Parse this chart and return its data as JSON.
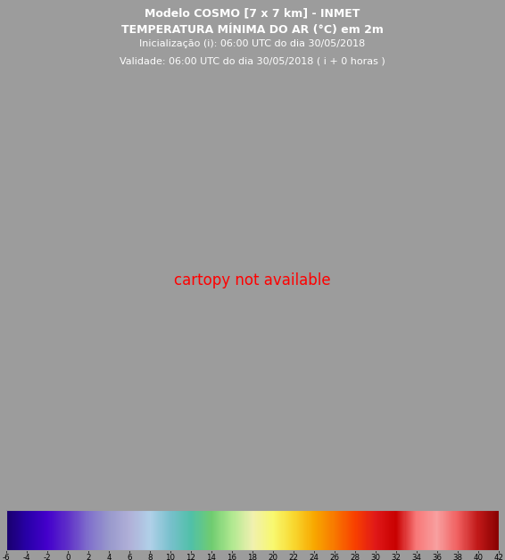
{
  "title_line1": "Modelo COSMO [7 x 7 km] - INMET",
  "title_line2": "TEMPERATURA MÍNIMA DO AR (°C) em 2m",
  "title_line3": "Inicialização (i): 06:00 UTC do dia 30/05/2018",
  "title_line4": "Validade: 06:00 UTC do dia 30/05/2018 ( i + 0 horas )",
  "colorbar_ticks": [
    -6,
    -4,
    -2,
    0,
    2,
    4,
    6,
    8,
    10,
    12,
    14,
    16,
    18,
    20,
    22,
    24,
    26,
    28,
    30,
    32,
    34,
    36,
    38,
    40,
    42
  ],
  "colorbar_colors": [
    "#18006b",
    "#2800a8",
    "#4400cc",
    "#5f30c8",
    "#8070cc",
    "#9898cc",
    "#b0b0d8",
    "#b0d0e8",
    "#78c0cc",
    "#50c0a8",
    "#70cc70",
    "#b0e890",
    "#f0f0b0",
    "#f8f870",
    "#f8d830",
    "#f8a800",
    "#f87800",
    "#f84000",
    "#e01818",
    "#c80000",
    "#f87878",
    "#f8a0a0",
    "#f06060",
    "#c01818",
    "#880000"
  ],
  "bg_color": "#9c9c9c",
  "title_fontsize1": 9.0,
  "title_fontsize2": 9.0,
  "title_fontsize3": 8.0,
  "title_fontsize4": 8.0,
  "figsize": [
    5.66,
    6.27
  ],
  "dpi": 100,
  "lon_min": -82,
  "lon_max": -28,
  "lat_min": -56,
  "lat_max": 14,
  "temp_vmin": -6,
  "temp_vmax": 42
}
